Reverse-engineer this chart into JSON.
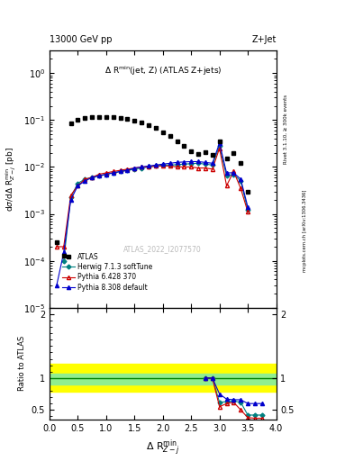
{
  "title_left": "13000 GeV pp",
  "title_right": "Z+Jet",
  "annotation": "Δ R$^{min}$(jet, Z) (ATLAS Z+jets)",
  "watermark": "ATLAS_2022_I2077570",
  "rivet_label": "Rivet 3.1.10, ≥ 300k events",
  "arxiv_label": "[arXiv:1306.3436]",
  "mcplots_label": "mcplots.cern.ch",
  "xlabel": "Δ R$^{min}_{Z-j}$",
  "ylabel_main": "dσ/dΔ R$^{min}_{Z-j}$ [pb]",
  "ylabel_ratio": "Ratio to ATLAS",
  "atlas_x": [
    0.125,
    0.25,
    0.375,
    0.5,
    0.625,
    0.75,
    0.875,
    1.0,
    1.125,
    1.25,
    1.375,
    1.5,
    1.625,
    1.75,
    1.875,
    2.0,
    2.125,
    2.25,
    2.375,
    2.5,
    2.625,
    2.75,
    2.875,
    3.0,
    3.125,
    3.25,
    3.375,
    3.5
  ],
  "atlas_y": [
    0.00025,
    0.00013,
    0.085,
    0.102,
    0.112,
    0.118,
    0.118,
    0.118,
    0.115,
    0.112,
    0.105,
    0.098,
    0.088,
    0.078,
    0.067,
    0.055,
    0.045,
    0.035,
    0.028,
    0.022,
    0.019,
    0.021,
    0.018,
    0.035,
    0.015,
    0.02,
    0.012,
    0.003
  ],
  "herwig_x": [
    0.25,
    0.375,
    0.5,
    0.625,
    0.75,
    0.875,
    1.0,
    1.125,
    1.25,
    1.375,
    1.5,
    1.625,
    1.75,
    1.875,
    2.0,
    2.125,
    2.25,
    2.375,
    2.5,
    2.625,
    2.75,
    2.875,
    3.0,
    3.125,
    3.25,
    3.375,
    3.5
  ],
  "herwig_y": [
    0.0001,
    0.0023,
    0.0045,
    0.0055,
    0.006,
    0.0065,
    0.007,
    0.0075,
    0.008,
    0.0085,
    0.009,
    0.0095,
    0.01,
    0.0105,
    0.011,
    0.011,
    0.0112,
    0.0115,
    0.0118,
    0.012,
    0.0115,
    0.011,
    0.028,
    0.0065,
    0.007,
    0.005,
    0.0012
  ],
  "pythia6_x": [
    0.125,
    0.25,
    0.375,
    0.5,
    0.625,
    0.75,
    0.875,
    1.0,
    1.125,
    1.25,
    1.375,
    1.5,
    1.625,
    1.75,
    1.875,
    2.0,
    2.125,
    2.25,
    2.375,
    2.5,
    2.625,
    2.75,
    2.875,
    3.0,
    3.125,
    3.25,
    3.375,
    3.5
  ],
  "pythia6_y": [
    0.0002,
    0.0002,
    0.0025,
    0.004,
    0.0055,
    0.006,
    0.007,
    0.0075,
    0.008,
    0.0085,
    0.009,
    0.0095,
    0.01,
    0.01,
    0.0105,
    0.0105,
    0.0105,
    0.01,
    0.01,
    0.01,
    0.0095,
    0.0095,
    0.009,
    0.025,
    0.004,
    0.008,
    0.0035,
    0.0011
  ],
  "pythia8_x": [
    0.125,
    0.25,
    0.375,
    0.5,
    0.625,
    0.75,
    0.875,
    1.0,
    1.125,
    1.25,
    1.375,
    1.5,
    1.625,
    1.75,
    1.875,
    2.0,
    2.125,
    2.25,
    2.375,
    2.5,
    2.625,
    2.75,
    2.875,
    3.0,
    3.125,
    3.25,
    3.375,
    3.5
  ],
  "pythia8_y": [
    3e-05,
    0.00015,
    0.002,
    0.004,
    0.005,
    0.006,
    0.0065,
    0.007,
    0.0075,
    0.008,
    0.0085,
    0.0095,
    0.01,
    0.0105,
    0.011,
    0.0115,
    0.012,
    0.0125,
    0.0128,
    0.013,
    0.013,
    0.0125,
    0.012,
    0.032,
    0.0075,
    0.0075,
    0.0055,
    0.0014
  ],
  "atlas_color": "#000000",
  "herwig_color": "#008080",
  "pythia6_color": "#cc0000",
  "pythia8_color": "#0000cc",
  "yellow_band_lo": 0.78,
  "yellow_band_hi": 1.22,
  "green_band_lo": 0.9,
  "green_band_hi": 1.07,
  "hr_x": [
    2.75,
    2.875,
    3.0,
    3.125,
    3.25,
    3.375,
    3.5,
    3.625,
    3.75
  ],
  "hr_y": [
    1.0,
    1.0,
    0.62,
    0.63,
    0.64,
    0.62,
    0.42,
    0.42,
    0.42
  ],
  "p6r_x": [
    2.75,
    2.875,
    3.0,
    3.125,
    3.25,
    3.375,
    3.5,
    3.625,
    3.75
  ],
  "p6r_y": [
    1.0,
    1.0,
    0.55,
    0.6,
    0.62,
    0.5,
    0.38,
    0.37,
    0.37
  ],
  "p8r_x": [
    2.75,
    2.875,
    3.0,
    3.125,
    3.25,
    3.375,
    3.5,
    3.625,
    3.75
  ],
  "p8r_y": [
    1.0,
    1.0,
    0.75,
    0.67,
    0.66,
    0.66,
    0.6,
    0.6,
    0.6
  ],
  "ylim_main": [
    1e-05,
    3.0
  ],
  "ylim_ratio": [
    0.35,
    2.1
  ],
  "xlim": [
    0.0,
    4.0
  ],
  "ratio_yticks": [
    0.5,
    1.0,
    2.0
  ],
  "ratio_yticklabels": [
    "0.5",
    "1",
    "2"
  ]
}
